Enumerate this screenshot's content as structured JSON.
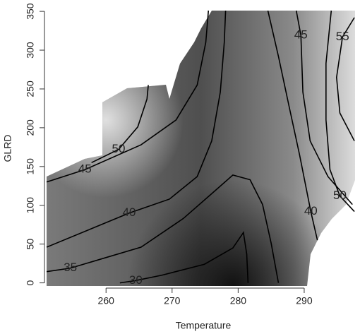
{
  "chart_data": {
    "type": "contour",
    "x_label": "Temperature",
    "y_label": "GLRD",
    "xlim": [
      251,
      297.7
    ],
    "ylim": [
      -4,
      351
    ],
    "xticks": [
      260,
      270,
      280,
      290
    ],
    "yticks": [
      0,
      50,
      100,
      150,
      200,
      250,
      300,
      350
    ],
    "line_color": "#000000",
    "contours": [
      {
        "level": 30,
        "x": [
          262.1,
          264.5,
          268.5,
          274.9,
          279.2,
          280.8,
          281.3,
          281.5
        ],
        "y": [
          0,
          3,
          10,
          24,
          45,
          65,
          37,
          0
        ]
      },
      {
        "level": 35,
        "x": [
          251,
          254.6,
          265.3,
          271.7,
          276,
          279.2,
          281.8,
          283.7,
          285,
          286.1
        ],
        "y": [
          14.5,
          19,
          46,
          83,
          115,
          139,
          133,
          101,
          51,
          0
        ]
      },
      {
        "level": 40,
        "x": [
          251,
          263.5,
          269.6,
          273.8,
          276,
          277.3,
          277.9,
          278.1
        ],
        "y": [
          46,
          90,
          108,
          137,
          183,
          246,
          310,
          351
        ]
      },
      {
        "level": 45,
        "x": [
          251,
          256.8,
          265.3,
          270.6,
          273.8,
          275.1,
          275.5
        ],
        "y": [
          130,
          146,
          178,
          210,
          255,
          310,
          351
        ]
      },
      {
        "level": 50,
        "x": [
          257.8,
          261.9,
          264.8,
          266.2,
          266.4
        ],
        "y": [
          155,
          172,
          201,
          237,
          255
        ]
      },
      {
        "level": 40,
        "x": [
          292,
          291,
          289.3,
          287.7,
          286.1,
          284.5
        ],
        "y": [
          55,
          92,
          165,
          228,
          292,
          351
        ]
      },
      {
        "level": 45,
        "x": [
          288.8,
          289.5,
          289.8,
          290.9,
          293.6,
          297.3
        ],
        "y": [
          351,
          319,
          246,
          183,
          137,
          101
        ]
      },
      {
        "level": 50,
        "x": [
          297.6,
          295.4,
          293.9,
          293.3,
          293.3,
          294.1
        ],
        "y": [
          92,
          112,
          146,
          210,
          283,
          351
        ]
      },
      {
        "level": 55,
        "x": [
          297.6,
          295.8,
          294.9,
          295.4,
          297.6
        ],
        "y": [
          342,
          317,
          265,
          219,
          183
        ]
      }
    ]
  }
}
